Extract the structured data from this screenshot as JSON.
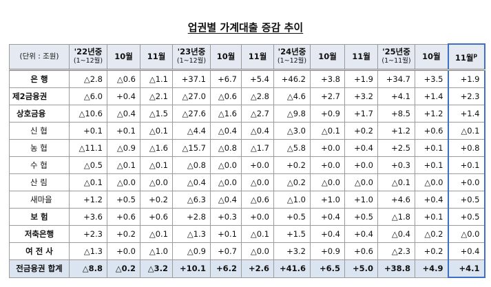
{
  "title": "업권별 가계대출 증감 추이",
  "table": {
    "header": [
      [
        "(단위 : 조원)"
      ],
      [
        "'22년중",
        "(1~12월)"
      ],
      [
        "10월"
      ],
      [
        "11월"
      ],
      [
        "'23년중",
        "(1~12월)"
      ],
      [
        "10월"
      ],
      [
        "11월"
      ],
      [
        "'24년중",
        "(1~12월)"
      ],
      [
        "10월"
      ],
      [
        "11월"
      ],
      [
        "'25년중",
        "(1~11월)"
      ],
      [
        "10월"
      ],
      [
        "11월"
      ]
    ],
    "preliminary_mark": "p",
    "rows": [
      [
        "은 행",
        "△2.8",
        "△0.6",
        "△1.1",
        "+37.1",
        "+6.7",
        "+5.4",
        "+46.2",
        "+3.8",
        "+1.9",
        "+34.7",
        "+3.5",
        "+1.9"
      ],
      [
        "제2금융권",
        "△6.0",
        "+0.4",
        "△2.1",
        "△27.0",
        "△0.6",
        "△2.8",
        "△4.6",
        "+2.7",
        "+3.2",
        "+4.1",
        "+1.4",
        "+2.3"
      ],
      [
        "상호금융",
        "△10.6",
        "△0.4",
        "△1.5",
        "△27.6",
        "△1.6",
        "△2.7",
        "△9.8",
        "+0.9",
        "+1.7",
        "+8.5",
        "+1.2",
        "+1.4"
      ],
      [
        "신 협",
        "+0.1",
        "+0.1",
        "△0.1",
        "△4.4",
        "△0.4",
        "△0.4",
        "△3.0",
        "△0.1",
        "+0.2",
        "+1.2",
        "+0.6",
        "△0.1"
      ],
      [
        "농 협",
        "△11.1",
        "△0.9",
        "△1.6",
        "△15.7",
        "△0.8",
        "△1.7",
        "△5.8",
        "+0.0",
        "+0.4",
        "+2.5",
        "+0.1",
        "+0.8"
      ],
      [
        "수 협",
        "△0.5",
        "△0.1",
        "△0.1",
        "△0.8",
        "△0.0",
        "+0.0",
        "+0.2",
        "+0.0",
        "+0.0",
        "+0.3",
        "+0.1",
        "+0.1"
      ],
      [
        "산 림",
        "△0.1",
        "△0.0",
        "△0.0",
        "△0.4",
        "△0.0",
        "△0.0",
        "△0.2",
        "△0.0",
        "△0.0",
        "△0.1",
        "△0.0",
        "+0.0"
      ],
      [
        "새마을",
        "+1.2",
        "+0.5",
        "+0.2",
        "△6.3",
        "△0.4",
        "△0.6",
        "△1.0",
        "+1.0",
        "+1.0",
        "+4.6",
        "+0.4",
        "+0.5"
      ],
      [
        "보 험",
        "+3.6",
        "+0.6",
        "+0.6",
        "+2.8",
        "+0.3",
        "+0.0",
        "+0.5",
        "+0.4",
        "+0.5",
        "△1.8",
        "+0.1",
        "+0.5"
      ],
      [
        "저축은행",
        "+2.3",
        "+0.2",
        "△0.1",
        "△1.3",
        "+0.1",
        "△0.1",
        "+1.5",
        "+0.4",
        "+0.4",
        "△0.4",
        "△0.2",
        "△0.0"
      ],
      [
        "여 전 사",
        "△1.3",
        "+0.0",
        "△1.0",
        "△0.9",
        "+0.7",
        "△0.0",
        "+3.2",
        "+0.9",
        "+0.6",
        "△2.3",
        "+0.2",
        "+0.4"
      ],
      [
        "전금융권 합계",
        "△8.8",
        "△0.2",
        "△3.2",
        "+10.1",
        "+6.2",
        "+2.6",
        "+41.6",
        "+6.5",
        "+5.0",
        "+38.8",
        "+4.9",
        "+4.1"
      ]
    ]
  }
}
